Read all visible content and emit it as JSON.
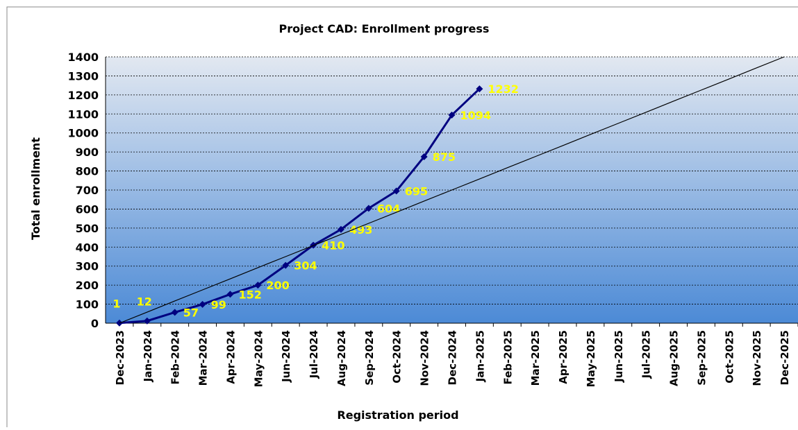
{
  "chart_data": {
    "type": "line",
    "title": "Project CAD: Enrollment progress",
    "x_label": "Registration period",
    "y_label": "Total enrollment",
    "categories": [
      "Dec-2023",
      "Jan-2024",
      "Feb-2024",
      "Mar-2024",
      "Apr-2024",
      "May-2024",
      "Jun-2024",
      "Jul-2024",
      "Aug-2024",
      "Sep-2024",
      "Oct-2024",
      "Nov-2024",
      "Dec-2024",
      "Jan-2025",
      "Feb-2025",
      "Mar-2025",
      "Apr-2025",
      "May-2025",
      "Jun-2025",
      "Jul-2025",
      "Aug-2025",
      "Sep-2025",
      "Oct-2025",
      "Nov-2025",
      "Dec-2025"
    ],
    "series": [
      {
        "color": "#000080",
        "marker": "diamond",
        "data_labels": true,
        "label_color": "#ffff00",
        "values": [
          1,
          12,
          57,
          99,
          152,
          200,
          304,
          410,
          493,
          604,
          695,
          875,
          1094,
          1232,
          null,
          null,
          null,
          null,
          null,
          null,
          null,
          null,
          null,
          null,
          null
        ]
      },
      {
        "color": "#000000",
        "marker": "none",
        "data_labels": false,
        "values": [
          0,
          58,
          117,
          175,
          233,
          292,
          350,
          408,
          467,
          525,
          583,
          642,
          700,
          758,
          817,
          875,
          933,
          992,
          1050,
          1108,
          1167,
          1225,
          1283,
          1342,
          1400
        ]
      }
    ],
    "ylim": [
      0,
      1400
    ],
    "yticks": [
      0,
      100,
      200,
      300,
      400,
      500,
      600,
      700,
      800,
      900,
      1000,
      1100,
      1200,
      1300,
      1400
    ],
    "grid": true
  }
}
